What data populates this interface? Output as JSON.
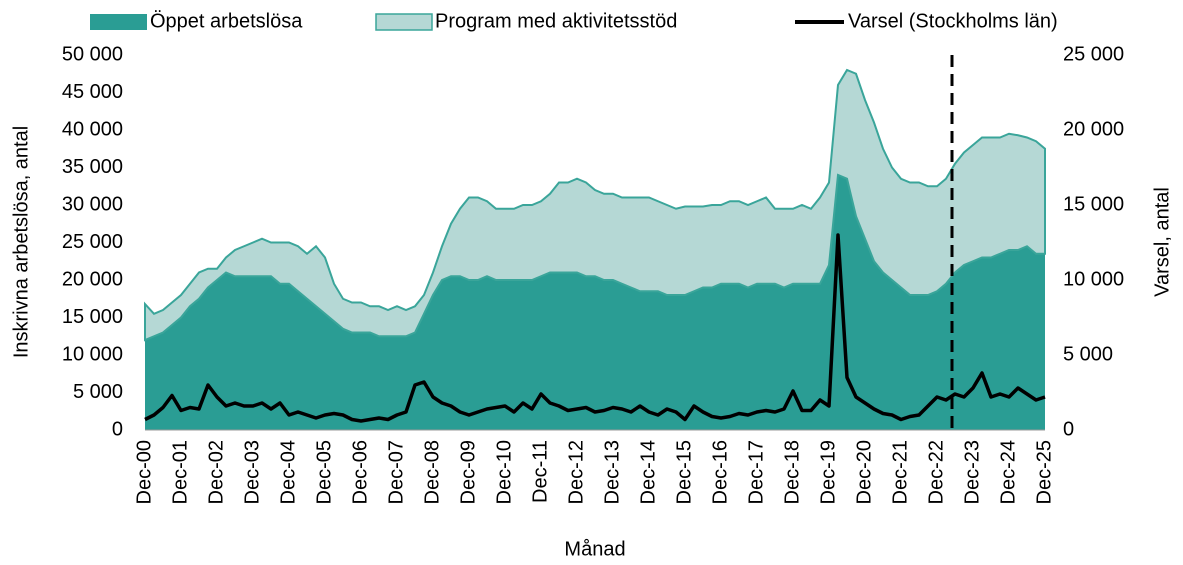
{
  "chart_data": {
    "type": "stacked_area_line",
    "xlabel": "Månad",
    "ylabel": "Inskrivna arbetslösa, antal",
    "y2label": "Varsel, antal",
    "categories": [
      "Dec-00",
      null,
      null,
      null,
      "Dec-01",
      null,
      null,
      null,
      "Dec-02",
      null,
      null,
      null,
      "Dec-03",
      null,
      null,
      null,
      "Dec-04",
      null,
      null,
      null,
      "Dec-05",
      null,
      null,
      null,
      "Dec-06",
      null,
      null,
      null,
      "Dec-07",
      null,
      null,
      null,
      "Dec-08",
      null,
      null,
      null,
      "Dec-09",
      null,
      null,
      null,
      "Dec-10",
      null,
      null,
      null,
      "Dec-11",
      null,
      null,
      null,
      "Dec-12",
      null,
      null,
      null,
      "Dec-13",
      null,
      null,
      null,
      "Dec-14",
      null,
      null,
      null,
      "Dec-15",
      null,
      null,
      null,
      "Dec-16",
      null,
      null,
      null,
      "Dec-17",
      null,
      null,
      null,
      "Dec-18",
      null,
      null,
      null,
      "Dec-19",
      null,
      null,
      null,
      "Dec-20",
      null,
      null,
      null,
      "Dec-21",
      null,
      null,
      null,
      "Dec-22",
      null,
      null,
      null,
      "Dec-23",
      null,
      null,
      null,
      "Dec-24",
      null,
      null,
      null,
      "Dec-25"
    ],
    "series": [
      {
        "name": "Öppet arbetslösa",
        "color": "#2a9d94",
        "values": [
          12000,
          12500,
          13000,
          14000,
          15000,
          16500,
          17500,
          19000,
          20000,
          21000,
          20500,
          20500,
          20500,
          20500,
          20500,
          19500,
          19500,
          18500,
          17500,
          16500,
          15500,
          14500,
          13500,
          13000,
          13000,
          13000,
          12500,
          12500,
          12500,
          12500,
          13000,
          15500,
          18000,
          20000,
          20500,
          20500,
          20000,
          20000,
          20500,
          20000,
          20000,
          20000,
          20000,
          20000,
          20500,
          21000,
          21000,
          21000,
          21000,
          20500,
          20500,
          20000,
          20000,
          19500,
          19000,
          18500,
          18500,
          18500,
          18000,
          18000,
          18000,
          18500,
          19000,
          19000,
          19500,
          19500,
          19500,
          19000,
          19500,
          19500,
          19500,
          19000,
          19500,
          19500,
          19500,
          19500,
          22000,
          34000,
          33500,
          28500,
          25500,
          22500,
          21000,
          20000,
          19000,
          18000,
          18000,
          18000,
          18500,
          19500,
          21000,
          22000,
          22500,
          23000,
          23000,
          23500,
          24000,
          24000,
          24500,
          23500,
          23500
        ]
      },
      {
        "name": "Program med aktivitetsstöd",
        "color": "#b5d8d5",
        "values": [
          4800,
          3000,
          3000,
          3000,
          3000,
          3000,
          3500,
          2500,
          1500,
          2000,
          3500,
          4000,
          4500,
          5000,
          4500,
          5500,
          5500,
          6000,
          6000,
          8000,
          7500,
          5000,
          4000,
          4000,
          4000,
          3500,
          4000,
          3500,
          4000,
          3500,
          3500,
          2500,
          3000,
          4500,
          7000,
          9000,
          11000,
          11000,
          10000,
          9500,
          9500,
          9500,
          10000,
          10000,
          10000,
          10500,
          12000,
          12000,
          12500,
          12500,
          11500,
          11500,
          11500,
          11500,
          12000,
          12500,
          12500,
          12000,
          12000,
          11500,
          11800,
          11300,
          10800,
          11000,
          10500,
          11000,
          11000,
          11000,
          11000,
          11500,
          10000,
          10500,
          10000,
          10500,
          10000,
          11500,
          11000,
          12000,
          14500,
          19000,
          18500,
          18500,
          16500,
          15000,
          14500,
          15000,
          15000,
          14500,
          14000,
          14000,
          14500,
          15000,
          15500,
          16000,
          16000,
          15500,
          15500,
          15300,
          14500,
          15000,
          14000
        ]
      },
      {
        "name": "Varsel (Stockholms län)",
        "color": "#000000",
        "axis": "y2",
        "values": [
          700,
          1000,
          1500,
          2300,
          1300,
          1500,
          1400,
          3000,
          2200,
          1600,
          1800,
          1600,
          1600,
          1800,
          1400,
          1800,
          1000,
          1200,
          1000,
          800,
          1000,
          1100,
          1000,
          700,
          600,
          700,
          800,
          700,
          1000,
          1200,
          3000,
          3200,
          2200,
          1800,
          1600,
          1200,
          1000,
          1200,
          1400,
          1500,
          1600,
          1200,
          1800,
          1400,
          2400,
          1800,
          1600,
          1300,
          1400,
          1500,
          1200,
          1300,
          1500,
          1400,
          1200,
          1600,
          1200,
          1000,
          1400,
          1200,
          700,
          1600,
          1200,
          900,
          800,
          900,
          1100,
          1000,
          1200,
          1300,
          1200,
          1400,
          2600,
          1300,
          1300,
          2000,
          1600,
          13000,
          3500,
          2200,
          1800,
          1400,
          1100,
          1000,
          700,
          900,
          1000,
          1600,
          2200,
          2000,
          2400,
          2200,
          2800,
          3800,
          2200,
          2400,
          2200,
          2800,
          2400,
          2000,
          2200
        ]
      }
    ],
    "ylim": [
      0,
      50000
    ],
    "yticks": [
      0,
      {
        "value": 5000,
        "label": "5 000"
      },
      {
        "value": 10000,
        "label": "10 000"
      },
      {
        "value": 15000,
        "label": "15 000"
      },
      {
        "value": 20000,
        "label": "20 000"
      },
      {
        "value": 25000,
        "label": "25 000"
      },
      {
        "value": 30000,
        "label": "30 000"
      },
      {
        "value": 35000,
        "label": "35 000"
      },
      {
        "value": 40000,
        "label": "40 000"
      },
      {
        "value": 45000,
        "label": "45 000"
      },
      {
        "value": 50000,
        "label": "50 000"
      }
    ],
    "y2lim": [
      0,
      25000
    ],
    "y2ticks": [
      0,
      {
        "value": 5000,
        "label": "5 000"
      },
      {
        "value": 10000,
        "label": "10 000"
      },
      {
        "value": 15000,
        "label": "15 000"
      },
      {
        "value": 20000,
        "label": "20 000"
      },
      {
        "value": 25000,
        "label": "25 000"
      }
    ],
    "grid": false
  }
}
